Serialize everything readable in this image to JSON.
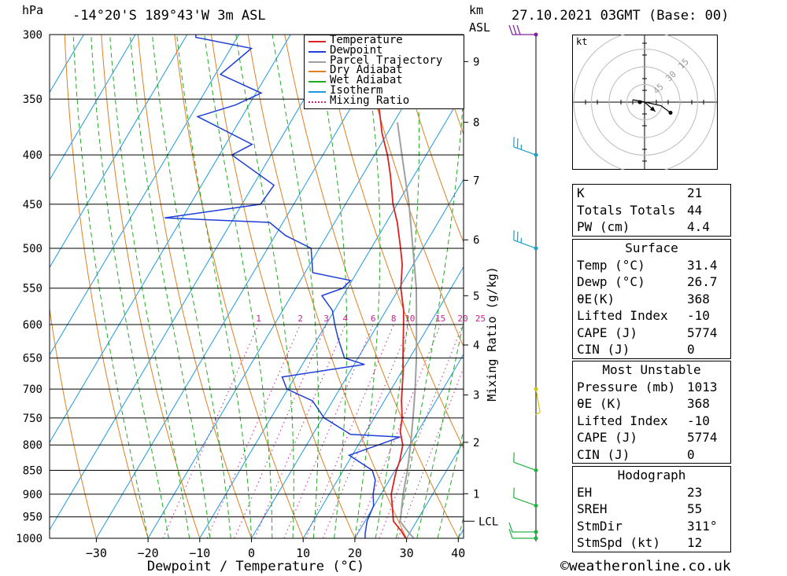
{
  "header": {
    "pressure_unit": "hPa",
    "location": "-14°20'S 189°43'W 3m ASL",
    "height_unit": "km",
    "height_ref": "ASL",
    "datetime": "27.10.2021 03GMT (Base: 00)"
  },
  "chart_data": {
    "type": "skew-t",
    "title": "-14°20'S 189°43'W 3m ASL",
    "xlabel": "Dewpoint / Temperature (°C)",
    "ylabel": "hPa",
    "x_ticks": [
      -30,
      -20,
      -10,
      0,
      10,
      20,
      30,
      40
    ],
    "pressure_levels": [
      300,
      350,
      400,
      450,
      500,
      550,
      600,
      650,
      700,
      750,
      800,
      850,
      900,
      950,
      1000
    ],
    "height_km_ticks": [
      {
        "label": "1",
        "p": 899
      },
      {
        "label": "2",
        "p": 795
      },
      {
        "label": "3",
        "p": 710
      },
      {
        "label": "4",
        "p": 630
      },
      {
        "label": "5",
        "p": 560
      },
      {
        "label": "6",
        "p": 490
      },
      {
        "label": "7",
        "p": 425
      },
      {
        "label": "8",
        "p": 370
      },
      {
        "label": "9",
        "p": 320
      }
    ],
    "lcl_label": "LCL",
    "lcl_pressure": 960,
    "mixing_ratio_axis_label": "Mixing Ratio (g/kg)",
    "mixing_ratio_labels": [
      "1",
      "2",
      "3",
      "4",
      "6",
      "8",
      "10",
      "15",
      "20",
      "25"
    ],
    "mixing_ratio_values": [
      1,
      2,
      3,
      4,
      6,
      8,
      10,
      15,
      20,
      25
    ],
    "legend": [
      "Temperature",
      "Dewpoint",
      "Parcel Trajectory",
      "Dry Adiabat",
      "Wet Adiabat",
      "Isotherm",
      "Mixing Ratio"
    ],
    "colors": {
      "temperature": "#dd2222",
      "dewpoint": "#1f3fd8",
      "parcel": "#a0a0a0",
      "dry_adiabat": "#e08020",
      "wet_adiabat": "#22aa22",
      "isotherm": "#1e9ae0",
      "mixing_ratio": "#cc2288"
    },
    "series": [
      {
        "name": "Temperature",
        "points": [
          [
            1000,
            29.8
          ],
          [
            985,
            28.4
          ],
          [
            960,
            25.5
          ],
          [
            925,
            23.5
          ],
          [
            900,
            22.0
          ],
          [
            860,
            20.6
          ],
          [
            850,
            20.3
          ],
          [
            830,
            19.8
          ],
          [
            800,
            18.6
          ],
          [
            775,
            16.6
          ],
          [
            750,
            15.4
          ],
          [
            720,
            13.3
          ],
          [
            700,
            12.1
          ],
          [
            670,
            10.2
          ],
          [
            650,
            8.7
          ],
          [
            620,
            6.5
          ],
          [
            600,
            5.0
          ],
          [
            580,
            3.4
          ],
          [
            550,
            0.3
          ],
          [
            520,
            -2.1
          ],
          [
            500,
            -4.3
          ],
          [
            470,
            -7.9
          ],
          [
            450,
            -10.8
          ],
          [
            420,
            -14.6
          ],
          [
            400,
            -17.5
          ],
          [
            380,
            -21.0
          ],
          [
            360,
            -24.1
          ],
          [
            340,
            -28.0
          ],
          [
            320,
            -32.4
          ],
          [
            300,
            -36.8
          ]
        ]
      },
      {
        "name": "Dewpoint",
        "points": [
          [
            1000,
            22.0
          ],
          [
            990,
            21.5
          ],
          [
            960,
            20.4
          ],
          [
            925,
            19.9
          ],
          [
            900,
            18.5
          ],
          [
            870,
            17.3
          ],
          [
            850,
            15.6
          ],
          [
            820,
            9.4
          ],
          [
            800,
            13.9
          ],
          [
            785,
            17.2
          ],
          [
            780,
            7.3
          ],
          [
            750,
            0.3
          ],
          [
            720,
            -3.9
          ],
          [
            700,
            -10.2
          ],
          [
            680,
            -12.5
          ],
          [
            660,
            2.0
          ],
          [
            650,
            -2.6
          ],
          [
            620,
            -6.1
          ],
          [
            600,
            -8.3
          ],
          [
            580,
            -10.4
          ],
          [
            560,
            -14.1
          ],
          [
            550,
            -10.9
          ],
          [
            540,
            -10.3
          ],
          [
            530,
            -18.5
          ],
          [
            500,
            -21.6
          ],
          [
            485,
            -28.0
          ],
          [
            470,
            -32.6
          ],
          [
            465,
            -53.4
          ],
          [
            450,
            -36.4
          ],
          [
            430,
            -36.0
          ],
          [
            400,
            -47.6
          ],
          [
            390,
            -44.9
          ],
          [
            375,
            -53.0
          ],
          [
            365,
            -58.6
          ],
          [
            355,
            -52.6
          ],
          [
            345,
            -49.0
          ],
          [
            330,
            -59.0
          ],
          [
            310,
            -56.0
          ],
          [
            302,
            -68.0
          ],
          [
            300,
            -68.3
          ]
        ]
      },
      {
        "name": "Parcel Trajectory",
        "points": [
          [
            1000,
            31.4
          ],
          [
            980,
            29.0
          ],
          [
            960,
            26.8
          ],
          [
            940,
            26.0
          ],
          [
            900,
            24.3
          ],
          [
            850,
            22.4
          ],
          [
            800,
            20.1
          ],
          [
            750,
            17.5
          ],
          [
            700,
            14.6
          ],
          [
            650,
            11.3
          ],
          [
            600,
            7.5
          ],
          [
            550,
            3.3
          ],
          [
            500,
            -1.9
          ],
          [
            450,
            -7.7
          ],
          [
            400,
            -14.7
          ],
          [
            370,
            -19.3
          ]
        ]
      }
    ],
    "wind_barbs": [
      {
        "p": 1000,
        "dir": 270,
        "kt": 10
      },
      {
        "p": 985,
        "dir": 270,
        "kt": 10
      },
      {
        "p": 925,
        "dir": 290,
        "kt": 10
      },
      {
        "p": 850,
        "dir": 290,
        "kt": 10
      },
      {
        "p": 700,
        "dir": 170,
        "kt": 5
      },
      {
        "p": 500,
        "dir": 290,
        "kt": 25
      },
      {
        "p": 400,
        "dir": 290,
        "kt": 25
      },
      {
        "p": 300,
        "dir": 270,
        "kt": 30
      }
    ],
    "hodograph": {
      "unit_label": "kt",
      "ring_labels": [
        "15",
        "30",
        "45"
      ],
      "trace": [
        [
          -10,
          2
        ],
        [
          -4,
          1
        ],
        [
          14,
          -3
        ],
        [
          22,
          -9
        ]
      ],
      "storm_motion": {
        "dir": 311,
        "kt": 12
      }
    }
  },
  "indices": {
    "rows": [
      {
        "key": "K",
        "value": "21"
      },
      {
        "key": "Totals Totals",
        "value": "44"
      },
      {
        "key": "PW (cm)",
        "value": "4.4"
      }
    ]
  },
  "surface": {
    "title": "Surface",
    "rows": [
      {
        "key": "Temp (°C)",
        "value": "31.4"
      },
      {
        "key": "Dewp (°C)",
        "value": "26.7"
      },
      {
        "key": "θE(K)",
        "value": "368"
      },
      {
        "key": "Lifted Index",
        "value": "-10"
      },
      {
        "key": "CAPE (J)",
        "value": "5774"
      },
      {
        "key": "CIN (J)",
        "value": "0"
      }
    ]
  },
  "most_unstable": {
    "title": "Most Unstable",
    "rows": [
      {
        "key": "Pressure (mb)",
        "value": "1013"
      },
      {
        "key": "θE (K)",
        "value": "368"
      },
      {
        "key": "Lifted Index",
        "value": "-10"
      },
      {
        "key": "CAPE (J)",
        "value": "5774"
      },
      {
        "key": "CIN (J)",
        "value": "0"
      }
    ]
  },
  "hodograph_table": {
    "title": "Hodograph",
    "rows": [
      {
        "key": "EH",
        "value": "23"
      },
      {
        "key": "SREH",
        "value": "55"
      },
      {
        "key": "StmDir",
        "value": "311°"
      },
      {
        "key": "StmSpd (kt)",
        "value": "12"
      }
    ]
  },
  "footer": {
    "copyright": "©weatheronline.co.uk"
  }
}
